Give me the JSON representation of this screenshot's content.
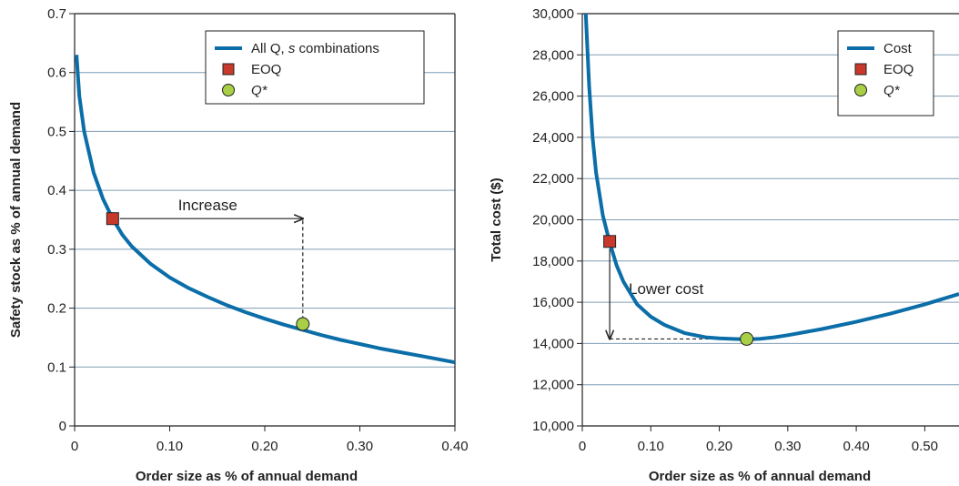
{
  "chart_data": [
    {
      "type": "line",
      "xlabel": "Order size as % of annual demand",
      "ylabel": "Safety stock as % of annual demand",
      "xlim": [
        0,
        0.4
      ],
      "ylim": [
        0,
        0.7
      ],
      "x_ticks": [
        "0",
        "0.10",
        "0.20",
        "0.30",
        "0.40"
      ],
      "y_ticks": [
        "0",
        "0.1",
        "0.2",
        "0.3",
        "0.4",
        "0.5",
        "0.6",
        "0.7"
      ],
      "grid": "horizontal",
      "legend_position": "top-right",
      "series": [
        {
          "name": "All Q, s combinations",
          "color": "#0b6ea8",
          "x": [
            0.002,
            0.005,
            0.01,
            0.02,
            0.03,
            0.04,
            0.05,
            0.06,
            0.08,
            0.1,
            0.12,
            0.14,
            0.16,
            0.18,
            0.2,
            0.22,
            0.24,
            0.26,
            0.28,
            0.3,
            0.32,
            0.34,
            0.36,
            0.38,
            0.4
          ],
          "y": [
            0.63,
            0.56,
            0.5,
            0.43,
            0.385,
            0.352,
            0.325,
            0.305,
            0.275,
            0.252,
            0.234,
            0.219,
            0.205,
            0.193,
            0.182,
            0.172,
            0.163,
            0.154,
            0.146,
            0.139,
            0.132,
            0.126,
            0.12,
            0.114,
            0.108
          ]
        }
      ],
      "markers": [
        {
          "name": "EOQ",
          "shape": "square",
          "color": "#c8392b",
          "x": 0.04,
          "y": 0.352
        },
        {
          "name": "Q*",
          "shape": "circle",
          "color": "#a8cf45",
          "x": 0.24,
          "y": 0.173
        }
      ],
      "legend": [
        {
          "label_prefix": "All Q, ",
          "label_italic": "s",
          "label_suffix": " combinations",
          "kind": "line"
        },
        {
          "label_prefix": "EOQ",
          "label_italic": "",
          "label_suffix": "",
          "kind": "square"
        },
        {
          "label_prefix": "",
          "label_italic": "Q*",
          "label_suffix": "",
          "kind": "circle"
        }
      ],
      "annotation": {
        "text": "Increase"
      }
    },
    {
      "type": "line",
      "xlabel": "Order size as % of annual demand",
      "ylabel": "Total cost ($)",
      "xlim": [
        0,
        0.55
      ],
      "ylim": [
        10000,
        30000
      ],
      "x_ticks": [
        "0",
        "0.10",
        "0.20",
        "0.30",
        "0.40",
        "0.50"
      ],
      "y_ticks": [
        "10,000",
        "12,000",
        "14,000",
        "16,000",
        "18,000",
        "20,000",
        "22,000",
        "24,000",
        "26,000",
        "28,000",
        "30,000"
      ],
      "grid": "horizontal",
      "legend_position": "top-right",
      "series": [
        {
          "name": "Cost",
          "color": "#0b6ea8",
          "x": [
            0.005,
            0.01,
            0.015,
            0.02,
            0.03,
            0.04,
            0.05,
            0.06,
            0.08,
            0.1,
            0.12,
            0.15,
            0.18,
            0.2,
            0.22,
            0.24,
            0.26,
            0.28,
            0.3,
            0.35,
            0.4,
            0.45,
            0.5,
            0.55
          ],
          "y": [
            30000,
            26500,
            24000,
            22300,
            20200,
            18900,
            17800,
            17000,
            15900,
            15300,
            14900,
            14500,
            14300,
            14250,
            14220,
            14200,
            14230,
            14300,
            14400,
            14700,
            15050,
            15450,
            15900,
            16400
          ]
        }
      ],
      "markers": [
        {
          "name": "EOQ",
          "shape": "square",
          "color": "#c8392b",
          "x": 0.04,
          "y": 18950
        },
        {
          "name": "Q*",
          "shape": "circle",
          "color": "#a8cf45",
          "x": 0.24,
          "y": 14220
        }
      ],
      "legend": [
        {
          "label_prefix": "Cost",
          "label_italic": "",
          "label_suffix": "",
          "kind": "line"
        },
        {
          "label_prefix": "EOQ",
          "label_italic": "",
          "label_suffix": "",
          "kind": "square"
        },
        {
          "label_prefix": "",
          "label_italic": "Q*",
          "label_suffix": "",
          "kind": "circle"
        }
      ],
      "annotation": {
        "text": "Lower cost"
      }
    }
  ]
}
